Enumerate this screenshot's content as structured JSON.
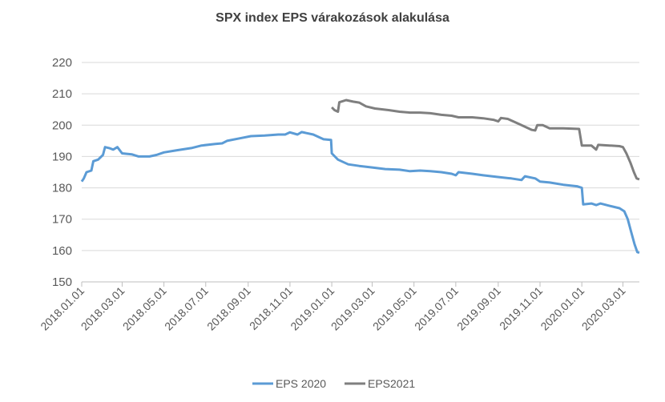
{
  "chart_data": {
    "type": "line",
    "title": "SPX index EPS várakozások  alakulása",
    "xlabel": "",
    "ylabel": "",
    "ylim": [
      150,
      220
    ],
    "yticks": [
      150,
      160,
      170,
      180,
      190,
      200,
      210,
      220
    ],
    "xlim": [
      "2018-01-01",
      "2020-03-25"
    ],
    "xtick_labels": [
      "2018.01.01",
      "2018.03.01",
      "2018.05.01",
      "2018.07.01",
      "2018.09.01",
      "2018.11.01",
      "2019.01.01",
      "2019.03.01",
      "2019.05.01",
      "2019.07.01",
      "2019.09.01",
      "2019.11.01",
      "2020.01.01",
      "2020.03.01"
    ],
    "xtick_dates": [
      "2018-01-01",
      "2018-03-01",
      "2018-05-01",
      "2018-07-01",
      "2018-09-01",
      "2018-11-01",
      "2019-01-01",
      "2019-03-01",
      "2019-05-01",
      "2019-07-01",
      "2019-09-01",
      "2019-11-01",
      "2020-01-01",
      "2020-03-01"
    ],
    "grid": "horizontal",
    "legend_position": "bottom",
    "series": [
      {
        "name": "EPS 2020",
        "color": "#5b9bd5",
        "points": [
          [
            "2018-01-01",
            182
          ],
          [
            "2018-01-04",
            183
          ],
          [
            "2018-01-08",
            185
          ],
          [
            "2018-01-15",
            185.5
          ],
          [
            "2018-01-18",
            188.5
          ],
          [
            "2018-01-25",
            189
          ],
          [
            "2018-02-01",
            190.5
          ],
          [
            "2018-02-04",
            193
          ],
          [
            "2018-02-10",
            192.7
          ],
          [
            "2018-02-16",
            192.2
          ],
          [
            "2018-02-22",
            193
          ],
          [
            "2018-03-01",
            191
          ],
          [
            "2018-03-15",
            190.7
          ],
          [
            "2018-03-25",
            190
          ],
          [
            "2018-04-10",
            190
          ],
          [
            "2018-04-20",
            190.5
          ],
          [
            "2018-05-01",
            191.3
          ],
          [
            "2018-05-20",
            192
          ],
          [
            "2018-06-10",
            192.7
          ],
          [
            "2018-06-25",
            193.5
          ],
          [
            "2018-07-15",
            194
          ],
          [
            "2018-07-25",
            194.2
          ],
          [
            "2018-08-01",
            195
          ],
          [
            "2018-08-20",
            195.8
          ],
          [
            "2018-09-05",
            196.5
          ],
          [
            "2018-09-25",
            196.7
          ],
          [
            "2018-10-15",
            197
          ],
          [
            "2018-10-25",
            197
          ],
          [
            "2018-11-01",
            197.7
          ],
          [
            "2018-11-12",
            197
          ],
          [
            "2018-11-18",
            197.8
          ],
          [
            "2018-12-05",
            197
          ],
          [
            "2018-12-20",
            195.5
          ],
          [
            "2018-12-31",
            195.3
          ],
          [
            "2019-01-01",
            191
          ],
          [
            "2019-01-10",
            189
          ],
          [
            "2019-01-25",
            187.5
          ],
          [
            "2019-02-10",
            187
          ],
          [
            "2019-03-01",
            186.5
          ],
          [
            "2019-03-20",
            186
          ],
          [
            "2019-04-10",
            185.8
          ],
          [
            "2019-04-25",
            185.3
          ],
          [
            "2019-05-10",
            185.5
          ],
          [
            "2019-05-25",
            185.3
          ],
          [
            "2019-06-10",
            185
          ],
          [
            "2019-06-25",
            184.5
          ],
          [
            "2019-07-01",
            184
          ],
          [
            "2019-07-05",
            185
          ],
          [
            "2019-07-25",
            184.5
          ],
          [
            "2019-08-10",
            184
          ],
          [
            "2019-08-30",
            183.5
          ],
          [
            "2019-09-20",
            183
          ],
          [
            "2019-10-05",
            182.5
          ],
          [
            "2019-10-10",
            183.7
          ],
          [
            "2019-10-25",
            183
          ],
          [
            "2019-11-01",
            182
          ],
          [
            "2019-11-15",
            181.7
          ],
          [
            "2019-12-05",
            181
          ],
          [
            "2019-12-25",
            180.5
          ],
          [
            "2020-01-01",
            180
          ],
          [
            "2020-01-03",
            174.7
          ],
          [
            "2020-01-15",
            175
          ],
          [
            "2020-01-22",
            174.5
          ],
          [
            "2020-01-28",
            175
          ],
          [
            "2020-02-10",
            174.3
          ],
          [
            "2020-02-25",
            173.5
          ],
          [
            "2020-03-03",
            172.5
          ],
          [
            "2020-03-08",
            170
          ],
          [
            "2020-03-13",
            166
          ],
          [
            "2020-03-18",
            162
          ],
          [
            "2020-03-22",
            159.5
          ],
          [
            "2020-03-25",
            159.3
          ]
        ]
      },
      {
        "name": "EPS2021",
        "color": "#7f7f7f",
        "points": [
          [
            "2019-01-01",
            205.7
          ],
          [
            "2019-01-05",
            204.8
          ],
          [
            "2019-01-10",
            204.3
          ],
          [
            "2019-01-12",
            207.3
          ],
          [
            "2019-01-22",
            208
          ],
          [
            "2019-02-01",
            207.5
          ],
          [
            "2019-02-10",
            207.2
          ],
          [
            "2019-02-20",
            206
          ],
          [
            "2019-03-05",
            205.3
          ],
          [
            "2019-03-25",
            204.8
          ],
          [
            "2019-04-10",
            204.3
          ],
          [
            "2019-04-25",
            204
          ],
          [
            "2019-05-10",
            204
          ],
          [
            "2019-05-25",
            203.8
          ],
          [
            "2019-06-10",
            203.3
          ],
          [
            "2019-06-25",
            203
          ],
          [
            "2019-07-05",
            202.5
          ],
          [
            "2019-07-25",
            202.5
          ],
          [
            "2019-08-10",
            202.2
          ],
          [
            "2019-08-25",
            201.7
          ],
          [
            "2019-09-01",
            201.2
          ],
          [
            "2019-09-05",
            202.3
          ],
          [
            "2019-09-15",
            202
          ],
          [
            "2019-09-25",
            201
          ],
          [
            "2019-10-05",
            200
          ],
          [
            "2019-10-20",
            198.5
          ],
          [
            "2019-10-25",
            198.3
          ],
          [
            "2019-10-28",
            200
          ],
          [
            "2019-11-05",
            200
          ],
          [
            "2019-11-15",
            199
          ],
          [
            "2019-12-05",
            199
          ],
          [
            "2019-12-28",
            198.8
          ],
          [
            "2020-01-01",
            193.5
          ],
          [
            "2020-01-15",
            193.5
          ],
          [
            "2020-01-22",
            192.2
          ],
          [
            "2020-01-25",
            193.7
          ],
          [
            "2020-02-10",
            193.5
          ],
          [
            "2020-02-25",
            193.3
          ],
          [
            "2020-03-01",
            193
          ],
          [
            "2020-03-06",
            191
          ],
          [
            "2020-03-12",
            188
          ],
          [
            "2020-03-17",
            185
          ],
          [
            "2020-03-21",
            183
          ],
          [
            "2020-03-25",
            182.7
          ]
        ]
      }
    ]
  }
}
